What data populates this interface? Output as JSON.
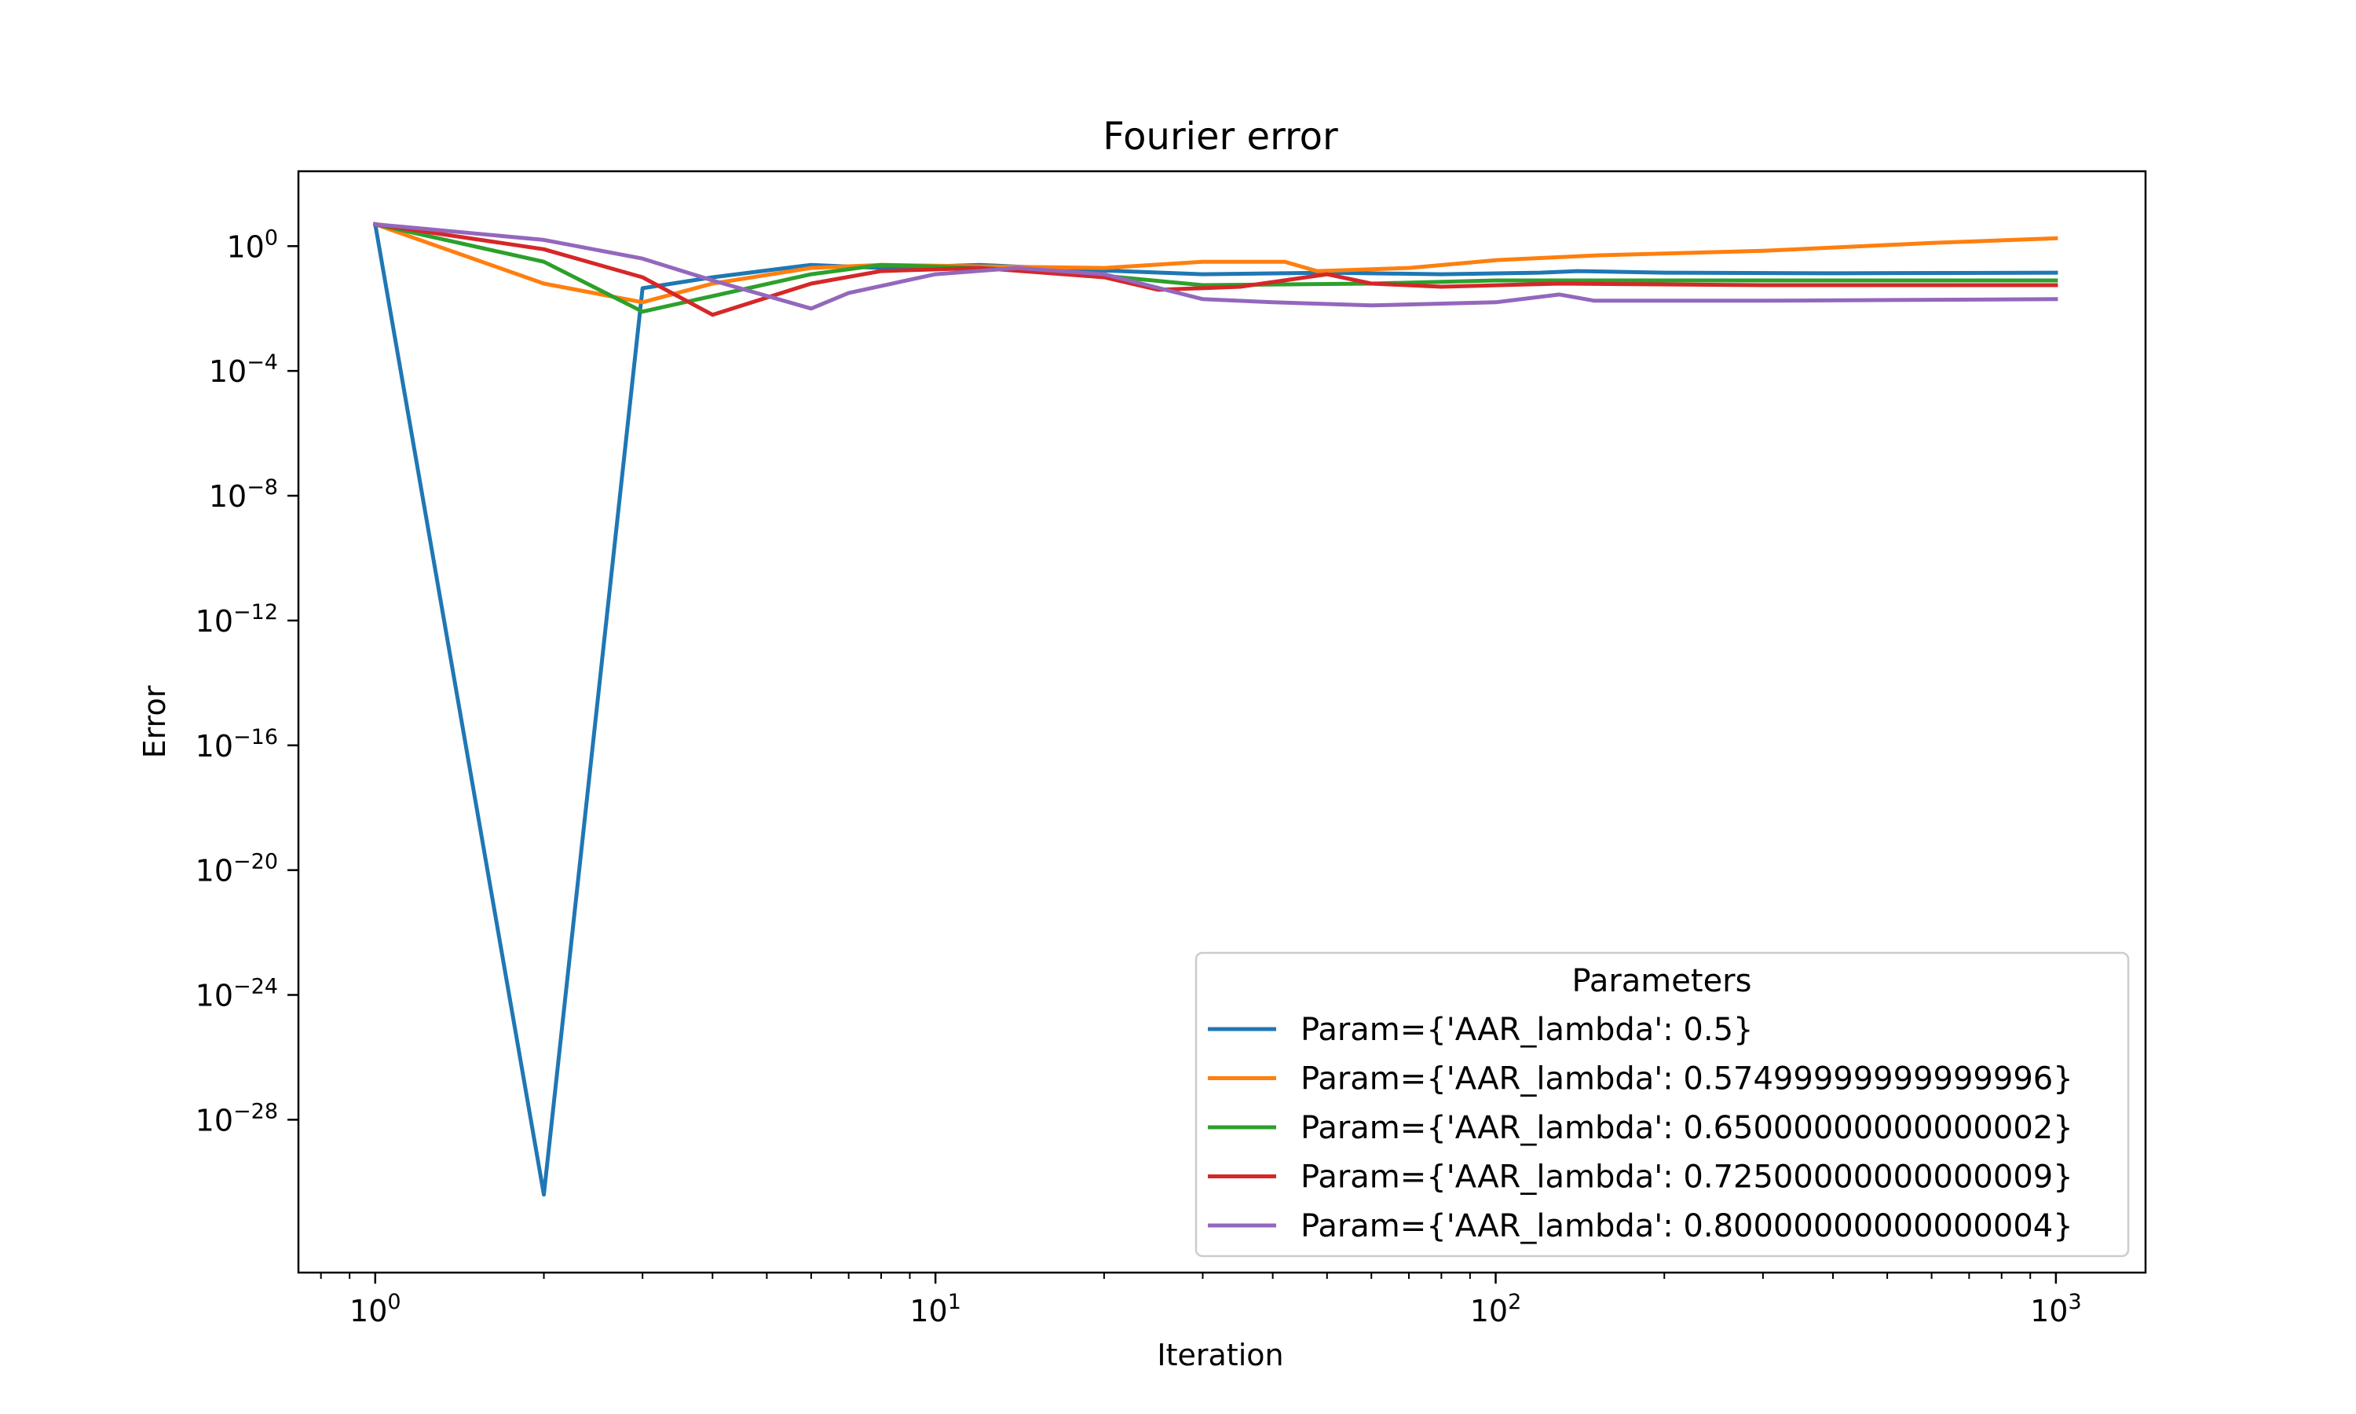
{
  "chart_data": {
    "type": "line",
    "title": "Fourier error",
    "xlabel": "Iteration",
    "ylabel": "Error",
    "xscale": "log",
    "yscale": "log",
    "xlim": [
      0.8626,
      1.16
    ],
    "xlim_note": "log10 of x-axis limits; x ranges roughly 0.73 to 1450",
    "ylim_log10": [
      -32.9,
      2.4
    ],
    "grid": false,
    "x_ticks": [
      {
        "base": "10",
        "exp": "0",
        "log": 0
      },
      {
        "base": "10",
        "exp": "1",
        "log": 1
      },
      {
        "base": "10",
        "exp": "2",
        "log": 2
      },
      {
        "base": "10",
        "exp": "3",
        "log": 3
      }
    ],
    "y_ticks": [
      {
        "base": "10",
        "exp": "0",
        "log": 0
      },
      {
        "base": "10",
        "exp": "−4",
        "log": -4
      },
      {
        "base": "10",
        "exp": "−8",
        "log": -8
      },
      {
        "base": "10",
        "exp": "−12",
        "log": -12
      },
      {
        "base": "10",
        "exp": "−16",
        "log": -16
      },
      {
        "base": "10",
        "exp": "−20",
        "log": -20
      },
      {
        "base": "10",
        "exp": "−24",
        "log": -24
      },
      {
        "base": "10",
        "exp": "−28",
        "log": -28
      }
    ],
    "legend": {
      "title": "Parameters",
      "placement": "lower-right"
    },
    "series": [
      {
        "name": "Param={'AAR_lambda': 0.5}",
        "color": "#1f77b4",
        "points": [
          [
            1,
            0.7
          ],
          [
            2,
            -30.4
          ],
          [
            3,
            -1.35
          ],
          [
            4,
            -1.0
          ],
          [
            6,
            -0.6
          ],
          [
            8,
            -0.7
          ],
          [
            12,
            -0.6
          ],
          [
            18,
            -0.75
          ],
          [
            30,
            -0.9
          ],
          [
            50,
            -0.85
          ],
          [
            80,
            -0.9
          ],
          [
            120,
            -0.85
          ],
          [
            140,
            -0.8
          ],
          [
            200,
            -0.85
          ],
          [
            400,
            -0.87
          ],
          [
            1000,
            -0.85
          ]
        ]
      },
      {
        "name": "Param={'AAR_lambda': 0.57499999999999996}",
        "color": "#ff7f0e",
        "points": [
          [
            1,
            0.7
          ],
          [
            2,
            -1.2
          ],
          [
            3,
            -1.8
          ],
          [
            4,
            -1.2
          ],
          [
            6,
            -0.7
          ],
          [
            8,
            -0.6
          ],
          [
            12,
            -0.65
          ],
          [
            20,
            -0.7
          ],
          [
            30,
            -0.5
          ],
          [
            42,
            -0.5
          ],
          [
            48,
            -0.8
          ],
          [
            70,
            -0.7
          ],
          [
            100,
            -0.45
          ],
          [
            150,
            -0.3
          ],
          [
            300,
            -0.15
          ],
          [
            600,
            0.1
          ],
          [
            1000,
            0.25
          ]
        ]
      },
      {
        "name": "Param={'AAR_lambda': 0.65000000000000002}",
        "color": "#2ca02c",
        "points": [
          [
            1,
            0.7
          ],
          [
            2,
            -0.5
          ],
          [
            3,
            -2.1
          ],
          [
            4,
            -1.6
          ],
          [
            6,
            -0.9
          ],
          [
            8,
            -0.6
          ],
          [
            12,
            -0.7
          ],
          [
            20,
            -0.95
          ],
          [
            30,
            -1.25
          ],
          [
            60,
            -1.2
          ],
          [
            100,
            -1.1
          ],
          [
            200,
            -1.1
          ],
          [
            1000,
            -1.1
          ]
        ]
      },
      {
        "name": "Param={'AAR_lambda': 0.72500000000000009}",
        "color": "#d62728",
        "points": [
          [
            1,
            0.7
          ],
          [
            2,
            -0.1
          ],
          [
            3,
            -1.0
          ],
          [
            4,
            -2.2
          ],
          [
            6,
            -1.2
          ],
          [
            8,
            -0.8
          ],
          [
            12,
            -0.7
          ],
          [
            20,
            -1.0
          ],
          [
            25,
            -1.4
          ],
          [
            35,
            -1.3
          ],
          [
            50,
            -0.9
          ],
          [
            60,
            -1.2
          ],
          [
            80,
            -1.3
          ],
          [
            130,
            -1.2
          ],
          [
            300,
            -1.25
          ],
          [
            1000,
            -1.25
          ]
        ]
      },
      {
        "name": "Param={'AAR_lambda': 0.80000000000000004}",
        "color": "#9467bd",
        "points": [
          [
            1,
            0.7
          ],
          [
            2,
            0.2
          ],
          [
            3,
            -0.4
          ],
          [
            4,
            -1.1
          ],
          [
            6,
            -2.0
          ],
          [
            7,
            -1.5
          ],
          [
            10,
            -0.9
          ],
          [
            14,
            -0.7
          ],
          [
            20,
            -0.9
          ],
          [
            30,
            -1.7
          ],
          [
            40,
            -1.8
          ],
          [
            60,
            -1.9
          ],
          [
            100,
            -1.8
          ],
          [
            130,
            -1.55
          ],
          [
            150,
            -1.75
          ],
          [
            300,
            -1.75
          ],
          [
            1000,
            -1.7
          ]
        ]
      }
    ]
  }
}
